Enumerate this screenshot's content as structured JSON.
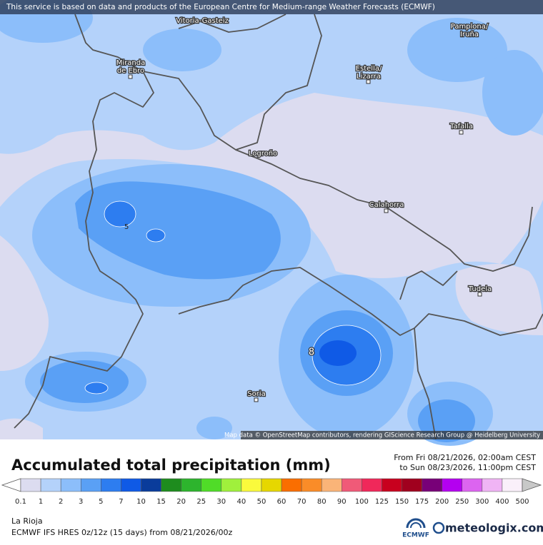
{
  "map": {
    "banner": "This service is based on data and products of the European Centre for Medium-range Weather Forecasts (ECMWF)",
    "cities": [
      "Vitoria-Gasteiz",
      [
        "Pamplona/",
        "Iruña"
      ],
      [
        "Miranda",
        "de Ebro"
      ],
      [
        "Estella/",
        "Lizarra"
      ],
      "Tafalla",
      "Logroño",
      "Calahorra",
      "Tudela",
      "Soria"
    ],
    "contour_labels": [
      "5",
      "8"
    ],
    "attribution": "Map data © OpenStreetMap contributors, rendering GIScience Research Group @ Heidelberg University"
  },
  "legend": {
    "title": "Accumulated total precipitation (mm)",
    "period": [
      "From Fri 08/21/2026, 02:00am CEST",
      "to Sun 08/23/2026, 11:00pm CEST"
    ],
    "labels": [
      "0.1",
      "1",
      "2",
      "3",
      "5",
      "7",
      "10",
      "15",
      "20",
      "25",
      "30",
      "40",
      "50",
      "60",
      "70",
      "80",
      "90",
      "100",
      "125",
      "150",
      "175",
      "200",
      "250",
      "300",
      "400",
      "500"
    ],
    "colors": [
      "#ffffff",
      "#dcdcf0",
      "#b4d2fa",
      "#8cbefa",
      "#5aa0f5",
      "#2d7df0",
      "#0f5ae6",
      "#0a3c9b",
      "#1e8c1e",
      "#2db42d",
      "#50dc28",
      "#a0f03c",
      "#fafa3c",
      "#e6d700",
      "#fa6e00",
      "#fa8c28",
      "#fab478",
      "#f05a78",
      "#f0285a",
      "#c8001e",
      "#a0001e",
      "#780078",
      "#b400f0",
      "#dc64f0",
      "#f0b4f5",
      "#faf0fa",
      "#c8c8c8"
    ]
  },
  "footer": {
    "region": "La Rioja",
    "model": "ECMWF IFS HRES 0z/12z (15 days) from  08/21/2026/00z",
    "logos": [
      "ECMWF",
      "meteologix.com"
    ]
  }
}
